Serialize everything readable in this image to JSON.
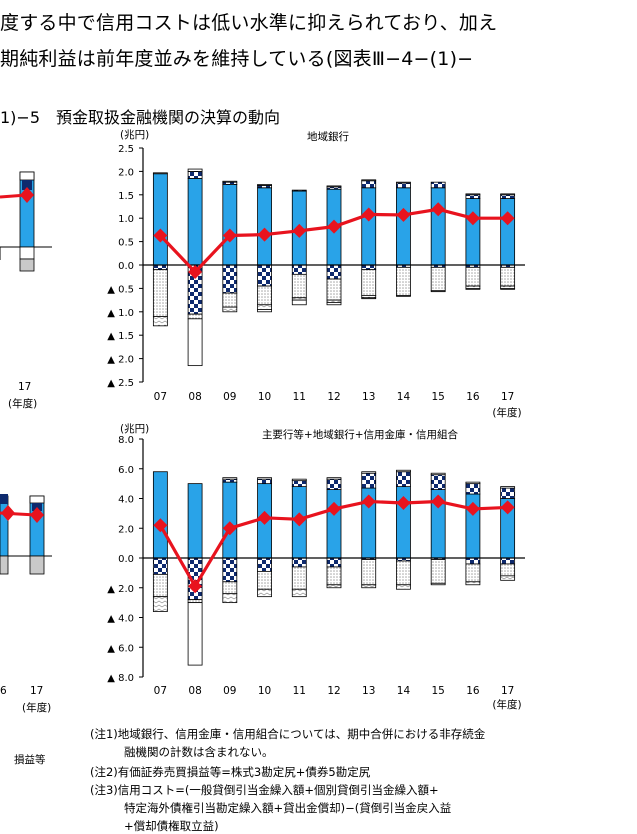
{
  "body_text": {
    "line1": "度する中で信用コストは低い水準に抑えられており、加え",
    "line2": "期純利益は前年度並みを維持している(図表Ⅲ−4−(1)−"
  },
  "section_title": "1)−5　預金取扱金融機関の決算の動向",
  "left_partial": {
    "top_tick": "17",
    "top_unit": "(年度)",
    "bottom_ticks": [
      "6",
      "17"
    ],
    "bottom_unit": "(年度)",
    "legend_fragment": "損益等"
  },
  "notes": [
    "(注1)地域銀行、信用金庫・信用組合については、期中合併における非存続金",
    "融機関の計数は含まれない。",
    "(注2)有価証券売買損益等=株式3勘定尻+債券5勘定尻",
    "(注3)信用コスト=(一般貸倒引当金繰入額+個別貸倒引当金繰入額+",
    "特定海外債権引当勘定繰入額+貸出金償却)−(貸倒引当金戻入益",
    "+償却債権取立益)"
  ],
  "colors": {
    "blue": "#29a3e8",
    "red": "#e8131e",
    "navy": "#0e2a6e",
    "dot": "#a6a6a6",
    "axis": "#000000"
  },
  "chart_data": [
    {
      "type": "bar",
      "title": "地域銀行",
      "unit_label": "(兆円)",
      "xlabel": "(年度)",
      "categories": [
        "07",
        "08",
        "09",
        "10",
        "11",
        "12",
        "13",
        "14",
        "15",
        "16",
        "17"
      ],
      "y_tick_labels": [
        "2.5",
        "2.0",
        "1.5",
        "1.0",
        "0.5",
        "0.0",
        "▲ 0.5",
        "▲ 1.0",
        "▲ 1.5",
        "▲ 2.0",
        "▲ 2.5"
      ],
      "ylim": [
        -2.5,
        2.5
      ],
      "series": [
        {
          "values": [
            1.95,
            1.85,
            1.72,
            1.65,
            1.58,
            1.62,
            1.65,
            1.65,
            1.65,
            1.42,
            1.42
          ]
        },
        {
          "values": [
            0.0,
            0.15,
            0.05,
            0.05,
            0.02,
            0.05,
            0.15,
            0.1,
            0.12,
            0.08,
            0.08
          ]
        },
        {
          "values": [
            0.02,
            0.05,
            0.02,
            0.02,
            0.0,
            0.02,
            0.02,
            0.02,
            0.0,
            0.02,
            0.02
          ]
        },
        {
          "values": [
            -0.1,
            -1.05,
            -0.6,
            -0.45,
            -0.2,
            -0.3,
            -0.1,
            -0.05,
            -0.05,
            -0.05,
            -0.05
          ]
        },
        {
          "values": [
            -1.0,
            -0.1,
            -0.3,
            -0.4,
            -0.5,
            -0.45,
            -0.55,
            -0.6,
            -0.5,
            -0.4,
            -0.4
          ]
        },
        {
          "values": [
            -0.2,
            0.0,
            -0.1,
            -0.1,
            -0.05,
            -0.05,
            -0.05,
            0.0,
            0.0,
            -0.05,
            -0.05
          ]
        },
        {
          "values": [
            0.0,
            -1.0,
            0.0,
            -0.05,
            -0.1,
            -0.05,
            -0.02,
            -0.02,
            -0.02,
            -0.02,
            -0.02
          ]
        },
        {
          "values": [
            0.63,
            -0.15,
            0.63,
            0.65,
            0.73,
            0.82,
            1.08,
            1.07,
            1.19,
            1.0,
            1.0
          ]
        }
      ]
    },
    {
      "type": "bar",
      "title": "主要行等+地域銀行+信用金庫・信用組合",
      "unit_label": "(兆円)",
      "xlabel": "(年度)",
      "categories": [
        "07",
        "08",
        "09",
        "10",
        "11",
        "12",
        "13",
        "14",
        "15",
        "16",
        "17"
      ],
      "y_tick_labels": [
        "8.0",
        "6.0",
        "4.0",
        "2.0",
        "0.0",
        "▲ 2.0",
        "▲ 4.0",
        "▲ 6.0",
        "▲ 8.0"
      ],
      "ylim": [
        -8,
        8
      ],
      "series": [
        {
          "values": [
            5.8,
            5.0,
            5.1,
            5.0,
            4.8,
            4.6,
            4.7,
            4.8,
            4.6,
            4.3,
            4.0
          ]
        },
        {
          "values": [
            0.0,
            0.0,
            0.2,
            0.3,
            0.4,
            0.7,
            1.0,
            1.0,
            1.0,
            0.7,
            0.7
          ]
        },
        {
          "values": [
            0.0,
            0.0,
            0.1,
            0.1,
            0.1,
            0.1,
            0.1,
            0.1,
            0.1,
            0.1,
            0.1
          ]
        },
        {
          "values": [
            -1.1,
            -2.8,
            -1.6,
            -0.9,
            -0.6,
            -0.6,
            -0.1,
            -0.2,
            -0.1,
            -0.4,
            -0.4
          ]
        },
        {
          "values": [
            -1.5,
            -0.2,
            -0.8,
            -1.2,
            -1.5,
            -1.2,
            -1.7,
            -1.6,
            -1.6,
            -1.2,
            -0.8
          ]
        },
        {
          "values": [
            -1.0,
            0.0,
            -0.6,
            -0.5,
            -0.5,
            -0.2,
            -0.2,
            -0.3,
            -0.1,
            -0.2,
            -0.3
          ]
        },
        {
          "values": [
            0.0,
            -4.2,
            0.0,
            0.0,
            0.0,
            0.0,
            0.0,
            0.0,
            0.0,
            0.0,
            0.0
          ]
        },
        {
          "values": [
            2.2,
            -1.9,
            2.0,
            2.7,
            2.6,
            3.3,
            3.8,
            3.7,
            3.8,
            3.3,
            3.4
          ]
        }
      ]
    }
  ]
}
